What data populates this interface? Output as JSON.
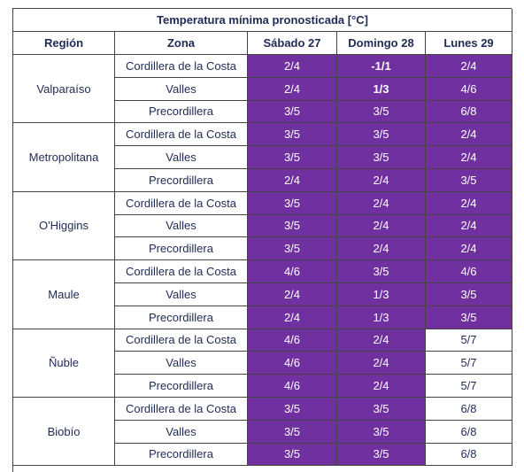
{
  "table": {
    "title": "Temperatura mínima pronosticada [°C]",
    "headers": [
      "Región",
      "Zona",
      "Sábado 27",
      "Domingo 28",
      "Lunes 29"
    ],
    "regions": [
      {
        "name": "Valparaíso",
        "rows": [
          {
            "zone": "Cordillera de la Costa",
            "values": [
              "2/4",
              "-1/1",
              "2/4"
            ]
          },
          {
            "zone": "Valles",
            "values": [
              "2/4",
              "1/3",
              "4/6"
            ]
          },
          {
            "zone": "Precordillera",
            "values": [
              "3/5",
              "3/5",
              "6/8"
            ]
          }
        ]
      },
      {
        "name": "Metropolitana",
        "rows": [
          {
            "zone": "Cordillera de la Costa",
            "values": [
              "3/5",
              "3/5",
              "2/4"
            ]
          },
          {
            "zone": "Valles",
            "values": [
              "3/5",
              "3/5",
              "2/4"
            ]
          },
          {
            "zone": "Precordillera",
            "values": [
              "2/4",
              "2/4",
              "3/5"
            ]
          }
        ]
      },
      {
        "name": "O'Higgins",
        "rows": [
          {
            "zone": "Cordillera de la Costa",
            "values": [
              "3/5",
              "2/4",
              "2/4"
            ]
          },
          {
            "zone": "Valles",
            "values": [
              "3/5",
              "2/4",
              "2/4"
            ]
          },
          {
            "zone": "Precordillera",
            "values": [
              "3/5",
              "2/4",
              "2/4"
            ]
          }
        ]
      },
      {
        "name": "Maule",
        "rows": [
          {
            "zone": "Cordillera de la Costa",
            "values": [
              "4/6",
              "3/5",
              "4/6"
            ]
          },
          {
            "zone": "Valles",
            "values": [
              "2/4",
              "1/3",
              "3/5"
            ]
          },
          {
            "zone": "Precordillera",
            "values": [
              "2/4",
              "1/3",
              "3/5"
            ]
          }
        ]
      },
      {
        "name": "Ñuble",
        "rows": [
          {
            "zone": "Cordillera de la Costa",
            "values": [
              "4/6",
              "2/4",
              "5/7"
            ]
          },
          {
            "zone": "Valles",
            "values": [
              "4/6",
              "2/4",
              "5/7"
            ]
          },
          {
            "zone": "Precordillera",
            "values": [
              "4/6",
              "2/4",
              "5/7"
            ]
          }
        ]
      },
      {
        "name": "Biobío",
        "rows": [
          {
            "zone": "Cordillera de la Costa",
            "values": [
              "3/5",
              "3/5",
              "6/8"
            ]
          },
          {
            "zone": "Valles",
            "values": [
              "3/5",
              "3/5",
              "6/8"
            ]
          },
          {
            "zone": "Precordillera",
            "values": [
              "3/5",
              "3/5",
              "6/8"
            ]
          }
        ]
      }
    ]
  }
}
